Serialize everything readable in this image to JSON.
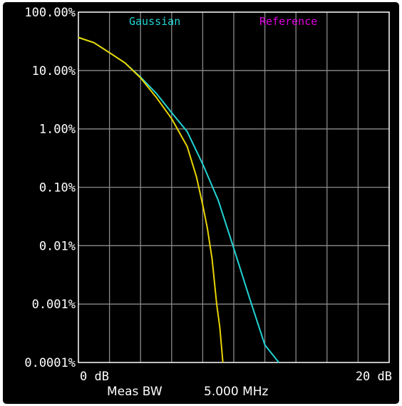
{
  "chart_data": {
    "type": "line",
    "title": "",
    "xlabel": "",
    "ylabel": "",
    "x_unit": "dB",
    "xlim": [
      0,
      20
    ],
    "ylim_percent": [
      0.0001,
      100
    ],
    "yscale": "log",
    "grid": true,
    "x_tick_labels": [
      "0 dB",
      "20 dB"
    ],
    "y_tick_labels": [
      "100.00%",
      "10.00%",
      "1.00%",
      "0.10%",
      "0.01%",
      "0.001%",
      "0.0001%"
    ],
    "legend": [
      "Gaussian",
      "Reference"
    ],
    "footer": {
      "label": "Meas BW",
      "value": "5.000 MHz"
    },
    "colors": {
      "gaussian": "#22d3d3",
      "measured": "#e8d400",
      "reference": "#e000e0",
      "grid": "#8a8a8a",
      "frame": "#ffffff"
    },
    "series": [
      {
        "name": "Gaussian",
        "color": "#22d3d3",
        "x": [
          0,
          1,
          2,
          3,
          4,
          5,
          6,
          7,
          8,
          9,
          10,
          11,
          12,
          12.9
        ],
        "y": [
          36.8,
          30,
          20.2,
          13.5,
          7.7,
          4.1,
          1.9,
          0.9,
          0.25,
          0.06,
          0.009,
          0.0013,
          0.0002,
          0.0001
        ]
      },
      {
        "x": [
          0,
          1,
          2,
          3,
          4,
          5,
          6,
          7,
          7.6,
          8,
          8.3,
          8.6,
          8.9,
          9.1,
          9.3
        ],
        "y": [
          36.8,
          30,
          20.2,
          13.5,
          7.5,
          3.5,
          1.5,
          0.5,
          0.15,
          0.05,
          0.02,
          0.006,
          0.001,
          0.0004,
          0.0001
        ]
      }
    ]
  }
}
